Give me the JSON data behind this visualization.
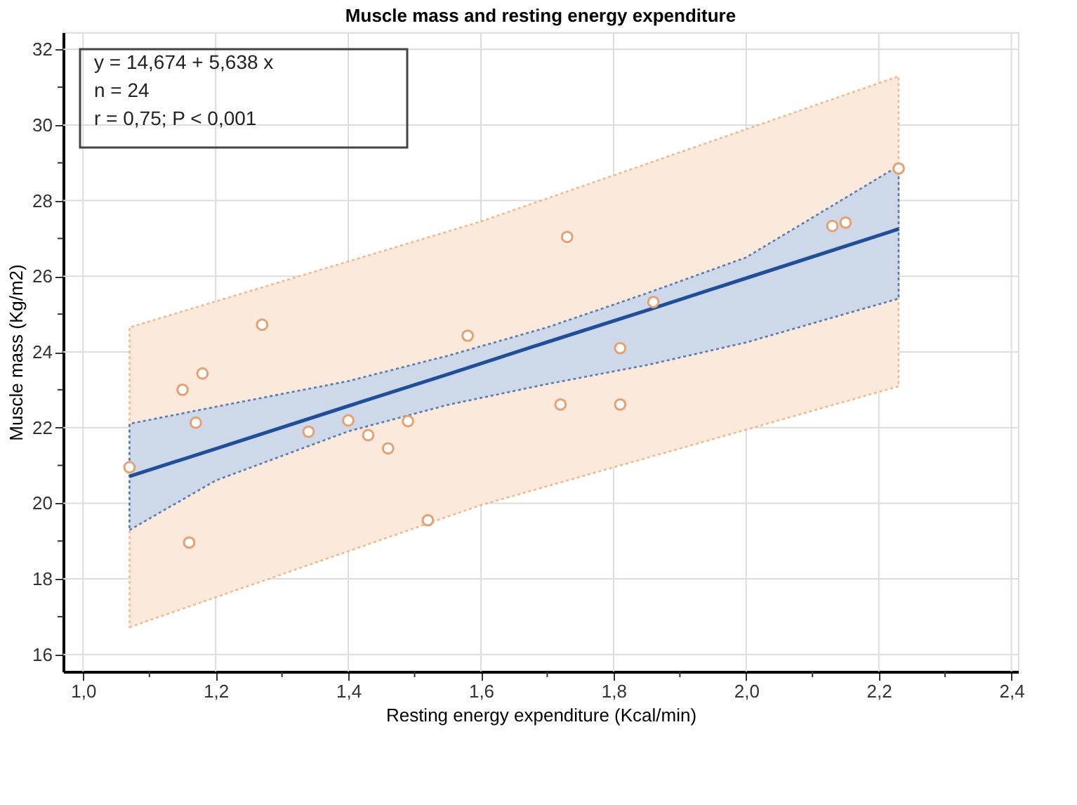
{
  "chart_data": {
    "type": "scatter",
    "title": "Muscle mass and resting energy expenditure",
    "xlabel": "Resting energy expenditure (Kcal/min)",
    "ylabel": "Muscle mass (Kg/m2)",
    "xlim": [
      0.97,
      2.41
    ],
    "ylim": [
      15.55,
      32.45
    ],
    "xticks": [
      {
        "value": 1.0,
        "label": "1,0"
      },
      {
        "value": 1.1,
        "label": null
      },
      {
        "value": 1.2,
        "label": "1,2"
      },
      {
        "value": 1.3,
        "label": null
      },
      {
        "value": 1.4,
        "label": "1,4"
      },
      {
        "value": 1.5,
        "label": null
      },
      {
        "value": 1.6,
        "label": "1,6"
      },
      {
        "value": 1.7,
        "label": null
      },
      {
        "value": 1.8,
        "label": "1,8"
      },
      {
        "value": 1.9,
        "label": null
      },
      {
        "value": 2.0,
        "label": "2,0"
      },
      {
        "value": 2.1,
        "label": null
      },
      {
        "value": 2.2,
        "label": "2,2"
      },
      {
        "value": 2.3,
        "label": null
      },
      {
        "value": 2.4,
        "label": "2,4"
      }
    ],
    "yticks": [
      16,
      {
        "value": 17,
        "label": null
      },
      18,
      {
        "value": 19,
        "label": null
      },
      20,
      {
        "value": 21,
        "label": null
      },
      22,
      {
        "value": 23,
        "label": null
      },
      24,
      {
        "value": 25,
        "label": null
      },
      26,
      {
        "value": 27,
        "label": null
      },
      28,
      {
        "value": 29,
        "label": null
      },
      30,
      {
        "value": 31,
        "label": null
      },
      32
    ],
    "grid": true,
    "annotations": [
      "y = 14,674  +  5,638  x",
      "n = 24",
      "r = 0,75; P < 0,001"
    ],
    "series": [
      {
        "type": "line",
        "color": "#f0a060",
        "line_style": "dotted",
        "marker": "none",
        "x": [
          1.07,
          1.6,
          2.23
        ],
        "values": [
          null,
          null,
          null
        ],
        "upper": [
          24.65,
          27.45,
          31.29
        ],
        "lower": [
          16.72,
          19.95,
          23.09
        ]
      },
      {
        "type": "line",
        "color": "#1f4e9a",
        "line_style": "solid",
        "marker": "none",
        "x": [
          1.07,
          1.2,
          1.4,
          1.55,
          1.7,
          1.85,
          2.0,
          2.23
        ],
        "values": [
          20.71,
          21.44,
          22.57,
          23.41,
          24.26,
          25.1,
          25.95,
          27.25
        ],
        "upper": [
          22.1,
          22.55,
          23.23,
          23.9,
          24.65,
          25.55,
          26.5,
          28.92
        ],
        "lower": [
          19.29,
          20.6,
          21.9,
          22.6,
          23.15,
          23.65,
          24.25,
          25.41
        ]
      },
      {
        "color": "#e8a070",
        "marker": "circle",
        "x": [
          1.07,
          1.15,
          1.18,
          1.17,
          1.16,
          1.27,
          1.34,
          1.4,
          1.43,
          1.46,
          1.49,
          1.52,
          1.58,
          1.72,
          1.73,
          1.81,
          1.81,
          1.86,
          2.13,
          2.15,
          2.23
        ],
        "values": [
          20.95,
          23.0,
          23.43,
          22.13,
          18.96,
          24.72,
          21.89,
          22.19,
          21.8,
          21.45,
          22.17,
          19.55,
          24.43,
          22.61,
          27.04,
          22.61,
          24.1,
          25.32,
          27.33,
          27.42,
          28.85
        ]
      }
    ]
  }
}
